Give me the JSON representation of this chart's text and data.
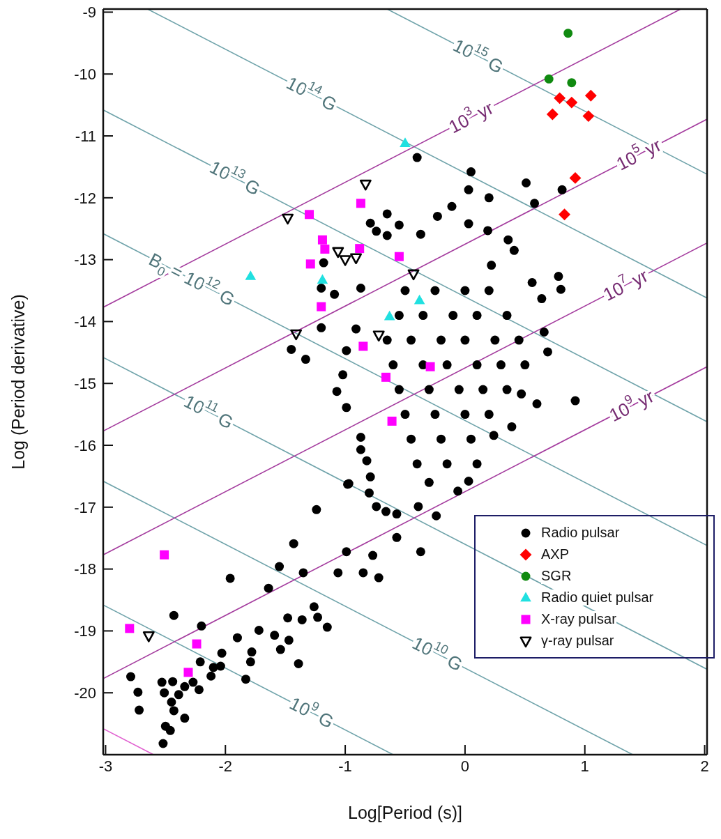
{
  "chart_data": {
    "type": "scatter",
    "xlabel": "Log[Period (s)]",
    "ylabel": "Log (Period derivative)",
    "xlim": [
      -3.02,
      2.02
    ],
    "ylim": [
      -21,
      -8.95
    ],
    "xticks": [
      -3,
      -2,
      -1,
      0,
      1,
      2
    ],
    "yticks": [
      -9,
      -10,
      -11,
      -12,
      -13,
      -14,
      -15,
      -16,
      -17,
      -18,
      -19,
      -20
    ],
    "legend": "bottom right",
    "series": [
      {
        "type": "line",
        "color": "#e060d0",
        "x": [
          -3.02,
          -2.6
        ],
        "values": [
          -20.58,
          -21
        ]
      },
      {
        "type": "line",
        "color": "#6fa3aa",
        "x": [
          -3.02,
          -0.6
        ],
        "values": [
          -18.58,
          -21
        ]
      },
      {
        "type": "line",
        "color": "#6fa3aa",
        "x": [
          -3.02,
          1.4
        ],
        "values": [
          -16.58,
          -21
        ]
      },
      {
        "type": "line",
        "color": "#6fa3aa",
        "x": [
          -3.02,
          2.02
        ],
        "values": [
          -14.58,
          -19.62
        ]
      },
      {
        "type": "line",
        "color": "#6fa3aa",
        "x": [
          -3.02,
          2.02
        ],
        "values": [
          -12.58,
          -17.62
        ]
      },
      {
        "type": "line",
        "color": "#6fa3aa",
        "x": [
          -3.02,
          2.02
        ],
        "values": [
          -10.58,
          -15.62
        ]
      },
      {
        "type": "line",
        "color": "#6fa3aa",
        "x": [
          -2.65,
          2.02
        ],
        "values": [
          -8.95,
          -13.62
        ]
      },
      {
        "type": "line",
        "color": "#6fa3aa",
        "x": [
          -0.65,
          2.02
        ],
        "values": [
          -8.95,
          -11.62
        ]
      },
      {
        "type": "line",
        "color": "#a43c9e",
        "x": [
          -3.02,
          1.8
        ],
        "values": [
          -13.77,
          -8.95
        ]
      },
      {
        "type": "line",
        "color": "#a43c9e",
        "x": [
          -3.02,
          2.02
        ],
        "values": [
          -15.77,
          -10.73
        ]
      },
      {
        "type": "line",
        "color": "#a43c9e",
        "x": [
          -3.02,
          2.02
        ],
        "values": [
          -17.77,
          -12.73
        ]
      },
      {
        "type": "line",
        "color": "#a43c9e",
        "x": [
          -3.02,
          2.02
        ],
        "values": [
          -19.77,
          -14.73
        ]
      },
      {
        "name": "Radio pulsar",
        "color": "#000000",
        "marker": "circle",
        "x": [
          -0.4,
          0.05,
          0.51,
          0.81,
          0.58,
          0.03,
          0.2,
          -0.11,
          -0.23,
          0.03,
          0.19,
          0.36,
          -0.65,
          -0.55,
          -0.79,
          -0.74,
          -0.37,
          -0.65,
          -1.18,
          -1.2,
          -1.09,
          -0.87,
          -1.2,
          -1.45,
          -1.33,
          -1.02,
          -1.07,
          -0.91,
          -0.99,
          0.41,
          0.22,
          0.78,
          0.8,
          0.56,
          0.64,
          0.66,
          0.69,
          0.92,
          0.6,
          0.39,
          0.47,
          0.24,
          0.03,
          -0.06,
          -0.24,
          -0.39,
          -0.57,
          -0.74,
          -0.8,
          -0.97,
          -0.87,
          -0.99,
          -0.5,
          -0.25,
          0.0,
          0.2,
          -0.55,
          -0.35,
          -0.1,
          0.1,
          0.35,
          -0.65,
          -0.45,
          -0.2,
          0.0,
          0.25,
          0.45,
          -0.6,
          -0.35,
          -0.15,
          0.1,
          0.3,
          0.5,
          -0.55,
          -0.3,
          -0.05,
          0.15,
          0.35,
          -0.5,
          -0.25,
          0.0,
          0.2,
          -0.45,
          -0.2,
          0.05,
          -0.4,
          -0.15,
          0.1,
          -0.3,
          -0.87,
          -0.82,
          -0.79,
          -0.98,
          -0.66,
          -0.57,
          -0.37,
          -1.24,
          -1.43,
          -0.99,
          -0.77,
          -1.06,
          -0.85,
          -0.72,
          -1.55,
          -1.35,
          -1.64,
          -1.96,
          -2.43,
          -2.2,
          -1.26,
          -1.23,
          -1.15,
          -1.48,
          -1.36,
          -1.72,
          -1.59,
          -1.47,
          -1.9,
          -1.54,
          -1.78,
          -2.03,
          -1.79,
          -1.39,
          -2.1,
          -2.04,
          -2.21,
          -2.12,
          -1.83,
          -2.79,
          -2.73,
          -2.72,
          -2.53,
          -2.44,
          -2.51,
          -2.34,
          -2.27,
          -2.22,
          -2.39,
          -2.45,
          -2.43,
          -2.34,
          -2.5,
          -2.46,
          -2.52
        ],
        "values": [
          -11.35,
          -11.58,
          -11.76,
          -11.87,
          -12.09,
          -11.87,
          -12.0,
          -12.14,
          -12.3,
          -12.42,
          -12.53,
          -12.68,
          -12.26,
          -12.44,
          -12.41,
          -12.54,
          -12.59,
          -12.61,
          -13.05,
          -13.46,
          -13.56,
          -13.46,
          -14.1,
          -14.45,
          -14.61,
          -14.86,
          -15.13,
          -14.12,
          -14.47,
          -12.85,
          -13.09,
          -13.27,
          -13.48,
          -13.37,
          -13.63,
          -14.17,
          -14.49,
          -15.28,
          -15.33,
          -15.7,
          -15.17,
          -15.84,
          -16.58,
          -16.74,
          -17.14,
          -16.99,
          -17.11,
          -16.99,
          -16.77,
          -16.62,
          -15.87,
          -15.39,
          -13.5,
          -13.5,
          -13.5,
          -13.5,
          -13.9,
          -13.9,
          -13.9,
          -13.9,
          -13.9,
          -14.3,
          -14.3,
          -14.3,
          -14.3,
          -14.3,
          -14.3,
          -14.7,
          -14.7,
          -14.7,
          -14.7,
          -14.7,
          -14.7,
          -15.1,
          -15.1,
          -15.1,
          -15.1,
          -15.1,
          -15.5,
          -15.5,
          -15.5,
          -15.5,
          -15.9,
          -15.9,
          -15.9,
          -16.3,
          -16.3,
          -16.3,
          -16.6,
          -16.07,
          -16.25,
          -16.51,
          -16.63,
          -17.07,
          -17.49,
          -17.72,
          -17.04,
          -17.59,
          -17.72,
          -17.78,
          -18.06,
          -18.06,
          -18.14,
          -17.96,
          -18.06,
          -18.31,
          -18.15,
          -18.75,
          -18.92,
          -18.61,
          -18.78,
          -18.94,
          -18.79,
          -18.82,
          -18.99,
          -19.07,
          -19.15,
          -19.11,
          -19.3,
          -19.34,
          -19.36,
          -19.5,
          -19.53,
          -19.59,
          -19.57,
          -19.5,
          -19.73,
          -19.78,
          -19.74,
          -19.99,
          -20.28,
          -19.83,
          -19.82,
          -20.0,
          -19.9,
          -19.83,
          -19.95,
          -20.03,
          -20.15,
          -20.29,
          -20.41,
          -20.54,
          -20.61,
          -20.82
        ]
      },
      {
        "name": "AXP",
        "color": "#ff0000",
        "marker": "diamond",
        "x": [
          0.79,
          0.89,
          1.05,
          0.73,
          1.03,
          0.92,
          0.83
        ],
        "values": [
          -10.39,
          -10.46,
          -10.35,
          -10.65,
          -10.68,
          -11.68,
          -12.27
        ]
      },
      {
        "name": "SGR",
        "color": "#108a10",
        "marker": "circle",
        "x": [
          0.86,
          0.7,
          0.89
        ],
        "values": [
          -9.34,
          -10.08,
          -10.14
        ]
      },
      {
        "name": "Radio quiet pulsar",
        "color": "#20e0e0",
        "marker": "triangle",
        "x": [
          -0.5,
          -1.79,
          -1.19,
          -0.63,
          -0.38
        ],
        "values": [
          -11.12,
          -13.27,
          -13.33,
          -13.92,
          -13.66
        ]
      },
      {
        "name": "X-ray pulsar",
        "color": "#ff00ff",
        "marker": "square",
        "x": [
          -0.87,
          -1.3,
          -1.19,
          -1.17,
          -1.29,
          -0.88,
          -0.55,
          -1.2,
          -0.85,
          -0.66,
          -0.29,
          -0.61,
          -2.51,
          -2.8,
          -2.24,
          -2.31
        ],
        "values": [
          -12.09,
          -12.27,
          -12.68,
          -12.83,
          -13.07,
          -12.82,
          -12.95,
          -13.76,
          -14.4,
          -14.9,
          -14.73,
          -15.61,
          -17.77,
          -18.96,
          -19.21,
          -19.67
        ]
      },
      {
        "name": "γ-ray pulsar",
        "color": "#000000",
        "marker": "triangle_down",
        "x": [
          -0.83,
          -1.48,
          -1.06,
          -1.0,
          -0.91,
          -0.43,
          -1.41,
          -0.72,
          -2.64
        ],
        "values": [
          -11.78,
          -12.33,
          -12.87,
          -13.0,
          -12.97,
          -13.23,
          -14.2,
          -14.22,
          -19.08
        ]
      }
    ],
    "annotations": [
      {
        "text": "10$^{15}$ G",
        "x": 0.11,
        "y": -9.71
      },
      {
        "text": "10$^{14}$ G",
        "x": -1.28,
        "y": -10.32
      },
      {
        "text": "10$^{13}$ G",
        "x": -1.92,
        "y": -11.68
      },
      {
        "text": "B$_{0}$ = 10$^{12}$ G",
        "x": -2.28,
        "y": -13.32
      },
      {
        "text": "10$^{11}$ G",
        "x": -2.14,
        "y": -15.46
      },
      {
        "text": "10$^{10}$ G",
        "x": -0.23,
        "y": -19.37
      },
      {
        "text": "10$^{9}$ G",
        "x": -1.28,
        "y": -20.32
      },
      {
        "text": "10$^{3}$ yr",
        "x": 0.05,
        "y": -10.7
      },
      {
        "text": "10$^{5}$ yr",
        "x": 1.45,
        "y": -11.3
      },
      {
        "text": "10$^{7}$ yr",
        "x": 1.34,
        "y": -13.41
      },
      {
        "text": "10$^{9}$ yr",
        "x": 1.39,
        "y": -15.36
      }
    ]
  }
}
